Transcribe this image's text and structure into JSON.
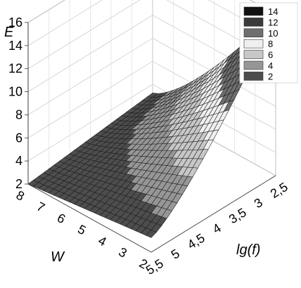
{
  "chart_data": {
    "type": "surface",
    "zlabel": "E",
    "xlabel": "lg(f)",
    "ylabel": "W",
    "z_ticks": [
      "2",
      "4",
      "6",
      "8",
      "10",
      "12",
      "14",
      "16"
    ],
    "x_ticks": [
      "5,5",
      "5",
      "4,5",
      "4",
      "3,5",
      "3",
      "2,5"
    ],
    "y_ticks": [
      "8",
      "7",
      "6",
      "5",
      "4",
      "3",
      "2"
    ],
    "x_range": [
      2.5,
      5.5
    ],
    "y_range": [
      2,
      8
    ],
    "z_range": [
      2,
      16
    ],
    "legend": {
      "placement": "top-right",
      "entries": [
        "14",
        "12",
        "10",
        "8",
        "6",
        "4",
        "2"
      ],
      "colors": [
        "#111111",
        "#3a3a3a",
        "#6e6e6e",
        "#efefef",
        "#c7c7c7",
        "#969696",
        "#4d4d4d"
      ]
    },
    "surface_samples": {
      "x": [
        2.5,
        3,
        3.5,
        4,
        4.5,
        5,
        5.5
      ],
      "y": [
        2,
        3,
        4,
        5,
        6,
        7,
        8
      ],
      "z": [
        [
          16.0,
          12.3,
          9.3,
          7.0,
          5.4,
          4.4,
          3.8
        ],
        [
          12.3,
          9.9,
          7.8,
          6.1,
          4.9,
          4.0,
          3.5
        ],
        [
          9.3,
          7.8,
          6.3,
          5.2,
          4.3,
          3.7,
          3.2
        ],
        [
          7.0,
          6.1,
          5.2,
          4.4,
          3.7,
          3.2,
          2.9
        ],
        [
          5.4,
          4.9,
          4.3,
          3.7,
          3.2,
          2.9,
          2.6
        ],
        [
          4.4,
          4.0,
          3.7,
          3.2,
          2.9,
          2.6,
          2.3
        ],
        [
          3.8,
          3.5,
          3.2,
          2.9,
          2.6,
          2.3,
          2.0
        ]
      ]
    },
    "grid": true
  }
}
